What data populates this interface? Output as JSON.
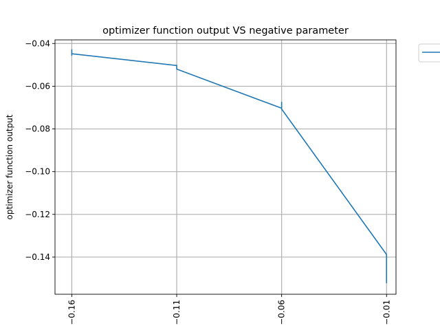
{
  "chart_data": {
    "type": "line",
    "title": "optimizer function output VS negative parameter",
    "xlabel": "",
    "ylabel": "optimizer function output",
    "xlim": [
      -0.168,
      -0.0055
    ],
    "ylim": [
      -0.1574,
      -0.0383
    ],
    "xticks": [
      -0.16,
      -0.11,
      -0.06,
      -0.01
    ],
    "xtick_labels": [
      "−0.16",
      "−0.11",
      "−0.06",
      "−0.01"
    ],
    "yticks": [
      -0.14,
      -0.12,
      -0.1,
      -0.08,
      -0.06,
      -0.04
    ],
    "ytick_labels": [
      "−0.14",
      "−0.12",
      "−0.10",
      "−0.08",
      "−0.06",
      "−0.04"
    ],
    "grid": true,
    "legend": "outside-top-right",
    "series": [
      {
        "color": "#1f77b4",
        "x": [
          -0.16,
          -0.16,
          -0.16,
          -0.11,
          -0.11,
          -0.11,
          -0.06,
          -0.06,
          -0.06,
          -0.01,
          -0.01,
          -0.01,
          -0.01,
          -0.01
        ],
        "y": [
          -0.043,
          -0.0455,
          -0.0448,
          -0.0503,
          -0.0502,
          -0.052,
          -0.0703,
          -0.0675,
          -0.0707,
          -0.1388,
          -0.1513,
          -0.1462,
          -0.152,
          -0.15
        ]
      }
    ]
  }
}
